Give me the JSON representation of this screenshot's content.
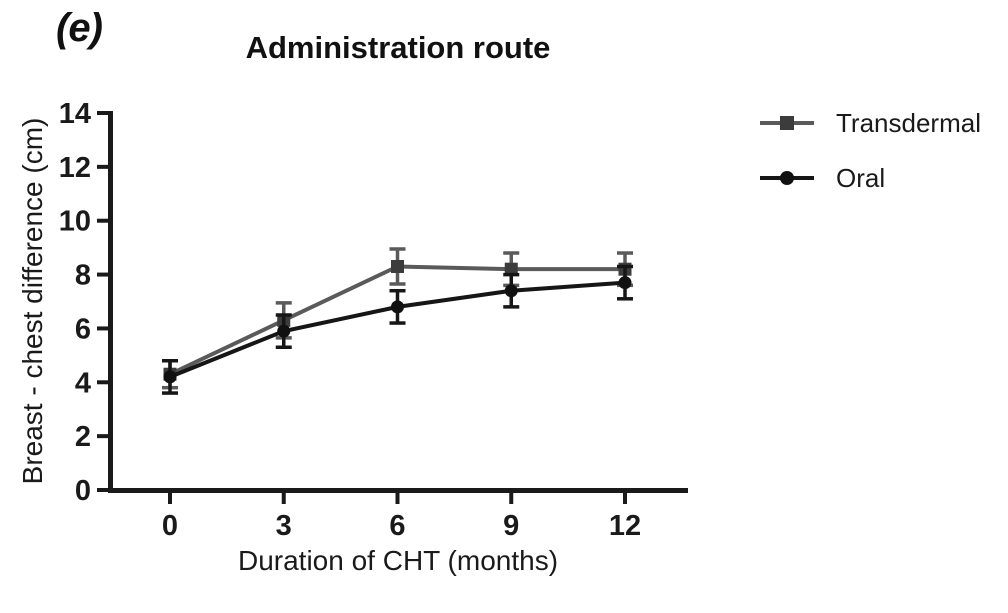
{
  "figure": {
    "panel_label": "(e)"
  },
  "chart_data": {
    "type": "line",
    "title": "Administration route",
    "xlabel": "Duration of CHT (months)",
    "ylabel": "Breast - chest difference (cm)",
    "x": [
      0,
      3,
      6,
      9,
      12
    ],
    "xticks": [
      0,
      3,
      6,
      9,
      12
    ],
    "yticks": [
      0,
      2,
      4,
      6,
      8,
      10,
      12,
      14
    ],
    "xlim": [
      0,
      12
    ],
    "ylim": [
      0,
      14
    ],
    "grid": false,
    "legend_position": "right",
    "error_bars": true,
    "series": [
      {
        "name": "Transdermal",
        "marker": "square",
        "color": "#5a5a5a",
        "marker_color": "#3c3c3c",
        "values": [
          4.3,
          6.3,
          8.3,
          8.2,
          8.2
        ],
        "errors": [
          0.5,
          0.65,
          0.65,
          0.6,
          0.6
        ]
      },
      {
        "name": "Oral",
        "marker": "circle",
        "color": "#161616",
        "marker_color": "#111111",
        "values": [
          4.2,
          5.9,
          6.8,
          7.4,
          7.7
        ],
        "errors": [
          0.6,
          0.6,
          0.6,
          0.6,
          0.6
        ]
      }
    ],
    "axis_color": "#1a1a1a",
    "text_color": "#1a1a1a"
  }
}
